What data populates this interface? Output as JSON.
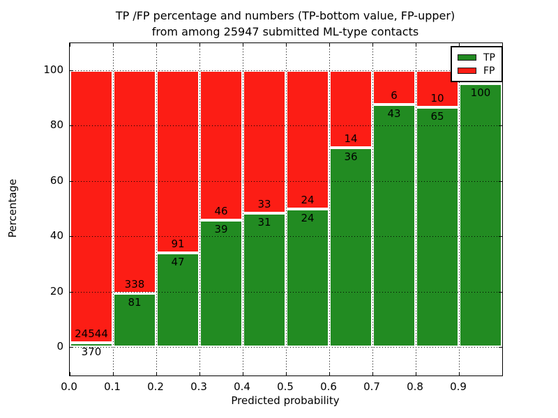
{
  "title": {
    "line1": "TP /FP percentage and numbers (TP-bottom value, FP-upper)",
    "line2": "from among 25947 submitted ML-type contacts"
  },
  "axes": {
    "x_label": "Predicted probability",
    "y_label": "Percentage",
    "x_tick_labels": [
      "0.0",
      "0.1",
      "0.2",
      "0.3",
      "0.4",
      "0.5",
      "0.6",
      "0.7",
      "0.8",
      "0.9"
    ],
    "y_tick_labels": [
      "0",
      "20",
      "40",
      "60",
      "80",
      "100"
    ],
    "y_tick_values": [
      0,
      20,
      40,
      60,
      80,
      100
    ]
  },
  "legend": {
    "items": [
      {
        "label": "TP",
        "color": "#228b22"
      },
      {
        "label": "FP",
        "color": "#fc1d15"
      }
    ]
  },
  "colors": {
    "tp_green": "#228b22",
    "fp_red": "#fc1d15",
    "bar_edge": "#ffffff",
    "grid": "#000000"
  },
  "chart_data": {
    "type": "bar",
    "stacked": true,
    "title": "TP /FP percentage and numbers (TP-bottom value, FP-upper) from among 25947 submitted ML-type contacts",
    "xlabel": "Predicted probability",
    "ylabel": "Percentage",
    "total_contacts": 25947,
    "x_bins": [
      "0.0-0.1",
      "0.1-0.2",
      "0.2-0.3",
      "0.3-0.4",
      "0.4-0.5",
      "0.5-0.6",
      "0.6-0.7",
      "0.7-0.8",
      "0.8-0.9",
      "0.9-1.0"
    ],
    "xlim": [
      0.0,
      1.0
    ],
    "ylim": [
      -10.3,
      110.3
    ],
    "grid": "dotted",
    "legend_position": "upper right",
    "series": [
      {
        "name": "TP",
        "position": "bottom",
        "color": "#228b22",
        "counts": [
          370,
          81,
          47,
          39,
          31,
          24,
          36,
          43,
          65,
          100
        ],
        "pct": [
          1.49,
          19.33,
          34.06,
          45.88,
          48.44,
          50.0,
          72.0,
          87.76,
          86.67,
          95.24
        ]
      },
      {
        "name": "FP",
        "position": "top",
        "color": "#fc1d15",
        "counts": [
          24544,
          338,
          91,
          46,
          33,
          24,
          14,
          6,
          10,
          null
        ],
        "pct": [
          98.51,
          80.67,
          65.94,
          54.12,
          51.56,
          50.0,
          28.0,
          12.24,
          13.33,
          4.76
        ]
      }
    ],
    "note_hidden_labels": [
      "FP count label of last bin is covered by the legend box"
    ]
  }
}
